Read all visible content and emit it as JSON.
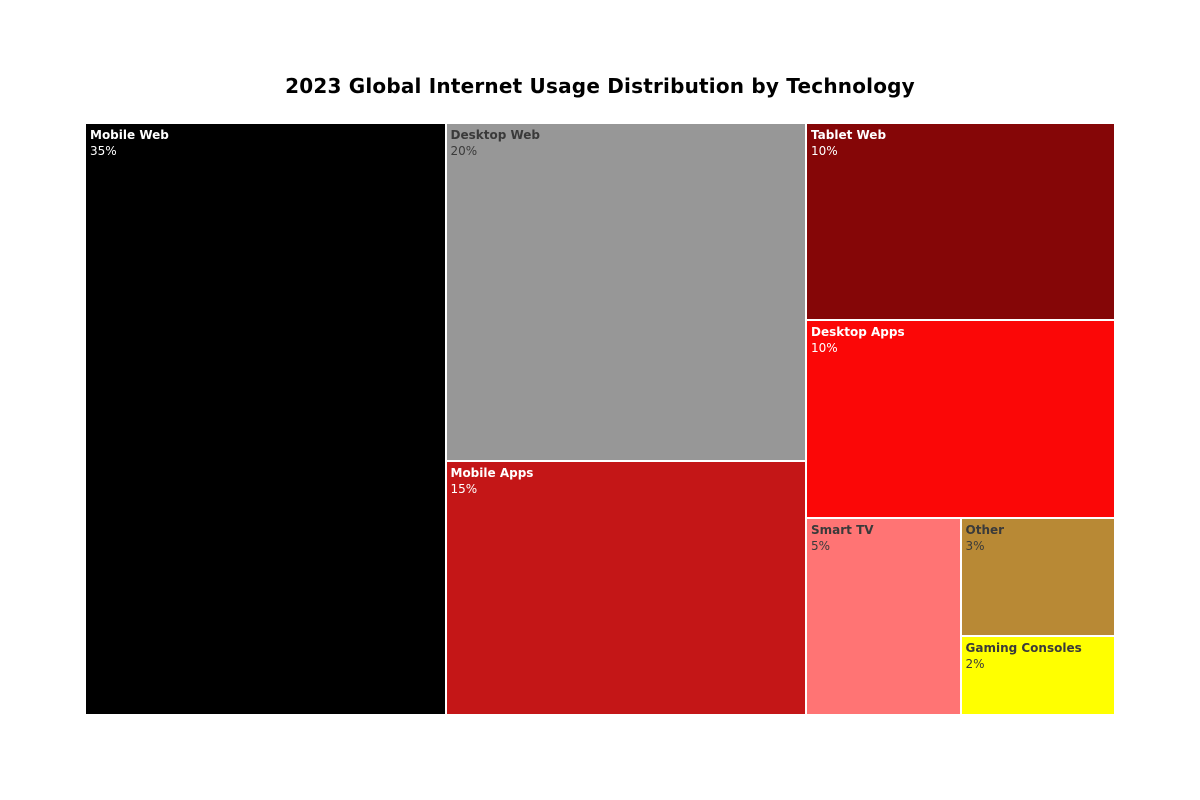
{
  "chart_data": {
    "type": "treemap",
    "title": "2023 Global Internet Usage Distribution by Technology",
    "items": [
      {
        "name": "Mobile Web",
        "value": 35,
        "value_label": "35%",
        "color": "#000000",
        "text_color": "#ffffff"
      },
      {
        "name": "Desktop Web",
        "value": 20,
        "value_label": "20%",
        "color": "#979797",
        "text_color": "#3a3a3a"
      },
      {
        "name": "Mobile Apps",
        "value": 15,
        "value_label": "15%",
        "color": "#c41617",
        "text_color": "#ffffff"
      },
      {
        "name": "Tablet Web",
        "value": 10,
        "value_label": "10%",
        "color": "#850607",
        "text_color": "#ffffff"
      },
      {
        "name": "Desktop Apps",
        "value": 10,
        "value_label": "10%",
        "color": "#fb0707",
        "text_color": "#ffffff"
      },
      {
        "name": "Smart TV",
        "value": 5,
        "value_label": "5%",
        "color": "#ff7474",
        "text_color": "#3a3a3a"
      },
      {
        "name": "Other",
        "value": 3,
        "value_label": "3%",
        "color": "#b88935",
        "text_color": "#3a3a3a"
      },
      {
        "name": "Gaming Consoles",
        "value": 2,
        "value_label": "2%",
        "color": "#ffff00",
        "text_color": "#3a3a3a"
      }
    ]
  }
}
